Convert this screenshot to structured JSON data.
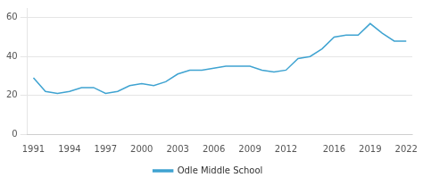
{
  "chart_data": {
    "type": "line",
    "x": [
      1991,
      1992,
      1993,
      1994,
      1995,
      1996,
      1997,
      1998,
      1999,
      2000,
      2001,
      2002,
      2003,
      2004,
      2005,
      2006,
      2007,
      2008,
      2009,
      2010,
      2011,
      2012,
      2013,
      2014,
      2015,
      2016,
      2017,
      2018,
      2019,
      2020,
      2021,
      2022
    ],
    "series": [
      {
        "name": "Odle Middle School",
        "color": "#3fa3d1",
        "values": [
          29,
          22,
          21,
          22,
          24,
          24,
          21,
          22,
          25,
          26,
          25,
          27,
          31,
          33,
          33,
          34,
          35,
          35,
          35,
          33,
          32,
          33,
          39,
          40,
          44,
          50,
          51,
          51,
          57,
          52,
          48,
          48
        ]
      }
    ],
    "xlim": [
      1990.5,
      2022.5
    ],
    "xticks": [
      1991,
      1994,
      1997,
      2000,
      2003,
      2006,
      2009,
      2012,
      2016,
      2019,
      2022
    ],
    "ylim": [
      0,
      65
    ],
    "yticks": [
      0,
      20,
      40,
      60
    ],
    "grid": "y",
    "legend": "bottom"
  }
}
